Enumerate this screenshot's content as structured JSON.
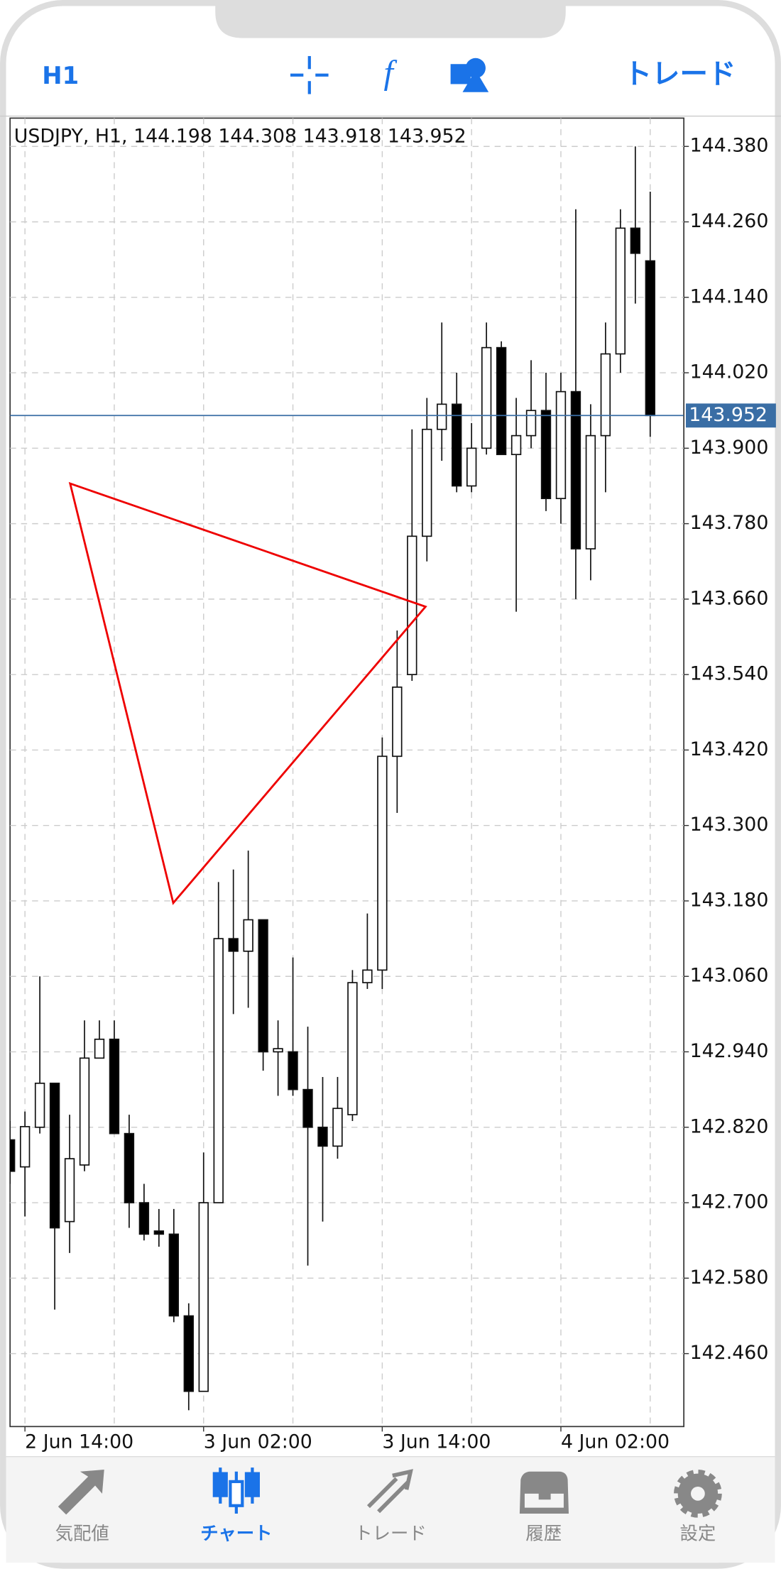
{
  "toolbar": {
    "timeframe": "H1",
    "trade": "トレード"
  },
  "chart_data": {
    "type": "candlestick",
    "title": "USDJPY, H1, 144.198 144.308 143.918 143.952",
    "categories": [
      null,
      "2 Jun 14:00",
      null,
      null,
      null,
      null,
      null,
      null,
      null,
      null,
      null,
      null,
      null,
      "3 Jun 02:00",
      null,
      null,
      null,
      null,
      null,
      null,
      null,
      null,
      null,
      null,
      null,
      "3 Jun 14:00",
      null,
      null,
      null,
      null,
      null,
      null,
      null,
      null,
      null,
      null,
      null,
      "4 Jun 02:00",
      null,
      null,
      null,
      null,
      null,
      null
    ],
    "open": [
      142.8,
      142.757,
      142.82,
      142.89,
      142.67,
      142.76,
      142.93,
      142.96,
      142.81,
      142.7,
      142.655,
      142.65,
      142.52,
      142.4,
      142.7,
      143.12,
      143.1,
      143.15,
      142.94,
      142.94,
      142.88,
      142.82,
      142.79,
      142.84,
      143.05,
      143.07,
      143.41,
      143.54,
      143.76,
      143.93,
      143.97,
      143.84,
      143.9,
      144.06,
      143.89,
      143.92,
      143.96,
      143.82,
      143.99,
      143.74,
      143.92,
      144.05,
      144.25,
      144.198
    ],
    "high": [
      142.83,
      142.845,
      143.06,
      142.89,
      142.84,
      142.99,
      142.99,
      142.99,
      142.84,
      142.73,
      142.69,
      142.69,
      142.54,
      142.78,
      143.21,
      143.23,
      143.26,
      143.15,
      142.99,
      143.09,
      142.98,
      142.9,
      142.9,
      143.07,
      143.16,
      143.44,
      143.61,
      143.93,
      143.98,
      144.1,
      144.02,
      143.94,
      144.1,
      144.07,
      143.98,
      144.04,
      144.02,
      144.02,
      144.28,
      143.97,
      144.1,
      144.28,
      144.38,
      144.308
    ],
    "low": [
      142.73,
      142.678,
      142.81,
      142.53,
      142.62,
      142.75,
      142.93,
      142.81,
      142.66,
      142.64,
      142.63,
      142.51,
      142.37,
      142.4,
      142.7,
      143.0,
      143.01,
      142.91,
      142.87,
      142.87,
      142.6,
      142.67,
      142.77,
      142.83,
      143.04,
      143.04,
      143.32,
      143.53,
      143.72,
      143.88,
      143.83,
      143.83,
      143.89,
      143.89,
      143.64,
      143.9,
      143.8,
      143.78,
      143.66,
      143.69,
      143.83,
      144.02,
      144.13,
      143.918
    ],
    "close": [
      142.75,
      142.821,
      142.89,
      142.66,
      142.77,
      142.93,
      142.96,
      142.81,
      142.7,
      142.65,
      142.65,
      142.52,
      142.4,
      142.7,
      143.12,
      143.1,
      143.15,
      142.94,
      142.945,
      142.88,
      142.82,
      142.79,
      142.85,
      143.05,
      143.07,
      143.41,
      143.52,
      143.76,
      143.93,
      143.97,
      143.84,
      143.9,
      144.06,
      143.89,
      143.92,
      143.96,
      143.82,
      143.99,
      143.74,
      143.92,
      144.05,
      144.25,
      144.21,
      143.952
    ],
    "last_price": 143.952,
    "ylim": [
      142.344,
      144.425
    ],
    "yticks": [
      {
        "value": 144.38,
        "label": "144.380"
      },
      {
        "value": 144.26,
        "label": "144.260"
      },
      {
        "value": 144.14,
        "label": "144.140"
      },
      {
        "value": 144.02,
        "label": "144.020"
      },
      {
        "value": 143.9,
        "label": "143.900"
      },
      {
        "value": 143.78,
        "label": "143.780"
      },
      {
        "value": 143.66,
        "label": "143.660"
      },
      {
        "value": 143.54,
        "label": "143.540"
      },
      {
        "value": 143.42,
        "label": "143.420"
      },
      {
        "value": 143.3,
        "label": "143.300"
      },
      {
        "value": 143.18,
        "label": "143.180"
      },
      {
        "value": 143.06,
        "label": "143.060"
      },
      {
        "value": 142.94,
        "label": "142.940"
      },
      {
        "value": 142.82,
        "label": "142.820"
      },
      {
        "value": 142.7,
        "label": "142.700"
      },
      {
        "value": 142.58,
        "label": "142.580"
      },
      {
        "value": 142.46,
        "label": "142.460"
      }
    ],
    "grid": true
  },
  "tabs": [
    "気配値",
    "チャート",
    "トレード",
    "履歴",
    "設定"
  ]
}
